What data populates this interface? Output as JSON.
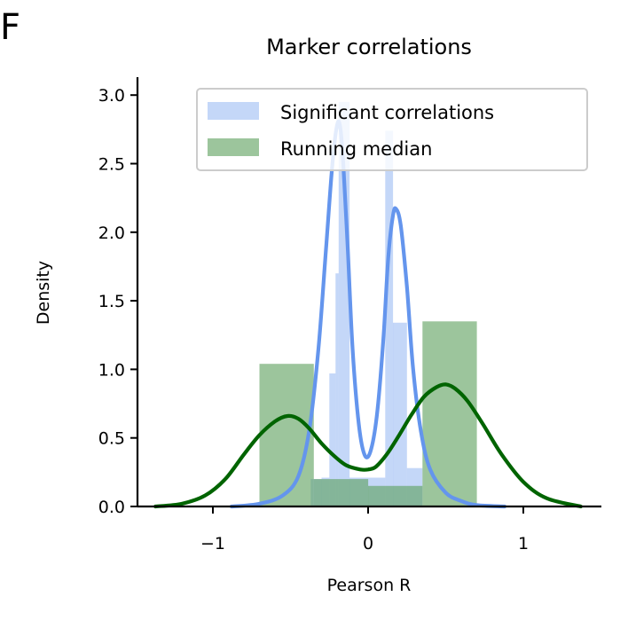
{
  "panel_letter": "F",
  "chart_data": {
    "type": "bar",
    "title": "Marker correlations",
    "xlabel": "Pearson R",
    "ylabel": "Density",
    "xlim": [
      -1.5,
      1.5
    ],
    "ylim": [
      0,
      3.15
    ],
    "x_ticks": [
      {
        "value": -1,
        "label": "−1"
      },
      {
        "value": 0,
        "label": "0"
      },
      {
        "value": 1,
        "label": "1"
      }
    ],
    "y_ticks": [
      {
        "value": 0,
        "label": "0.0"
      },
      {
        "value": 0.5,
        "label": "0.5"
      },
      {
        "value": 1,
        "label": "1.0"
      },
      {
        "value": 1.5,
        "label": "1.5"
      },
      {
        "value": 2,
        "label": "2.0"
      },
      {
        "value": 2.5,
        "label": "2.5"
      },
      {
        "value": 3,
        "label": "3.0"
      }
    ],
    "grid": false,
    "legend_position": "top-right",
    "series": [
      {
        "name": "Significant correlations",
        "type": "histogram",
        "color": "#6495ed",
        "bar_opacity": 0.38,
        "bins": [
          {
            "x0": -0.37,
            "x1": -0.3,
            "value": 0.2
          },
          {
            "x0": -0.3,
            "x1": -0.25,
            "value": 0.21
          },
          {
            "x0": -0.25,
            "x1": -0.21,
            "value": 0.97
          },
          {
            "x0": -0.21,
            "x1": -0.19,
            "value": 1.7
          },
          {
            "x0": -0.19,
            "x1": -0.12,
            "value": 2.95
          },
          {
            "x0": -0.12,
            "x1": 0.11,
            "value": 0.21
          },
          {
            "x0": 0.11,
            "x1": 0.16,
            "value": 2.74
          },
          {
            "x0": 0.16,
            "x1": 0.25,
            "value": 1.34
          },
          {
            "x0": 0.25,
            "x1": 0.35,
            "value": 0.28
          }
        ],
        "kde_x": [
          -0.88,
          -0.7,
          -0.55,
          -0.45,
          -0.38,
          -0.32,
          -0.27,
          -0.23,
          -0.2,
          -0.18,
          -0.16,
          -0.13,
          -0.1,
          -0.06,
          -0.02,
          0.02,
          0.06,
          0.1,
          0.13,
          0.16,
          0.18,
          0.21,
          0.25,
          0.29,
          0.34,
          0.4,
          0.5,
          0.6,
          0.7,
          0.88
        ],
        "kde_y": [
          0.0,
          0.02,
          0.08,
          0.22,
          0.55,
          1.15,
          1.9,
          2.5,
          2.78,
          2.77,
          2.5,
          1.85,
          1.15,
          0.6,
          0.37,
          0.42,
          0.7,
          1.25,
          1.82,
          2.12,
          2.17,
          2.05,
          1.6,
          1.0,
          0.55,
          0.27,
          0.1,
          0.04,
          0.01,
          0.0
        ],
        "kde_color": "#6495ed"
      },
      {
        "name": "Running median",
        "type": "histogram",
        "color": "#5a9e5a",
        "bar_opacity": 0.6,
        "bins": [
          {
            "x0": -0.7,
            "x1": -0.35,
            "value": 1.04
          },
          {
            "x0": -0.35,
            "x1": 0.0,
            "value": 0.2
          },
          {
            "x0": 0.0,
            "x1": 0.35,
            "value": 0.15
          },
          {
            "x0": 0.35,
            "x1": 0.7,
            "value": 1.35
          }
        ],
        "kde_x": [
          -1.37,
          -1.2,
          -1.05,
          -0.92,
          -0.8,
          -0.7,
          -0.6,
          -0.52,
          -0.45,
          -0.38,
          -0.3,
          -0.22,
          -0.14,
          -0.05,
          0.0,
          0.05,
          0.12,
          0.2,
          0.28,
          0.36,
          0.44,
          0.5,
          0.56,
          0.64,
          0.74,
          0.86,
          1.0,
          1.15,
          1.37
        ],
        "kde_y": [
          0.0,
          0.02,
          0.08,
          0.2,
          0.38,
          0.52,
          0.62,
          0.66,
          0.64,
          0.57,
          0.46,
          0.37,
          0.3,
          0.27,
          0.27,
          0.29,
          0.38,
          0.52,
          0.67,
          0.8,
          0.87,
          0.89,
          0.86,
          0.77,
          0.6,
          0.38,
          0.18,
          0.06,
          0.0
        ],
        "kde_color": "#006400"
      }
    ]
  }
}
